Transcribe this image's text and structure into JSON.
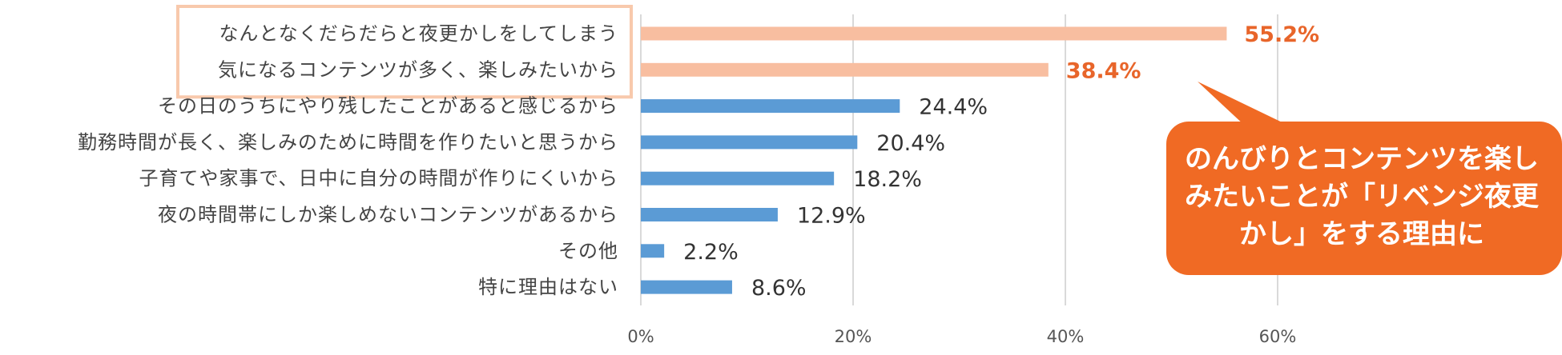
{
  "chart_data": {
    "type": "bar",
    "orientation": "horizontal",
    "categories": [
      "なんとなくだらだらと夜更かしをしてしまう",
      "気になるコンテンツが多く、楽しみたいから",
      "その日のうちにやり残したことがあると感じるから",
      "勤務時間が長く、楽しみのために時間を作りたいと思うから",
      "子育てや家事で、日中に自分の時間が作りにくいから",
      "夜の時間帯にしか楽しめないコンテンツがあるから",
      "その他",
      "特に理由はない"
    ],
    "values": [
      55.2,
      38.4,
      24.4,
      20.4,
      18.2,
      12.9,
      2.2,
      8.6
    ],
    "value_labels": [
      "55.2%",
      "38.4%",
      "24.4%",
      "20.4%",
      "18.2%",
      "12.9%",
      "2.2%",
      "8.6%"
    ],
    "highlighted": [
      true,
      true,
      false,
      false,
      false,
      false,
      false,
      false
    ],
    "xlim": [
      0,
      60
    ],
    "x_ticks": [
      "0%",
      "20%",
      "40%",
      "60%"
    ],
    "grid": true,
    "colors": {
      "bar_default": "#5b9bd5",
      "bar_highlight": "#f8bea0",
      "highlight_box": "#f8c9ac",
      "value_highlight": "#e8652a",
      "value_default": "#333333",
      "gridline": "#d9d9d9",
      "callout_bg": "#f06a24"
    }
  },
  "callout": {
    "lines": [
      "のんびりとコンテンツを楽し",
      "みたいことが「リベンジ夜更",
      "かし」をする理由に"
    ]
  }
}
